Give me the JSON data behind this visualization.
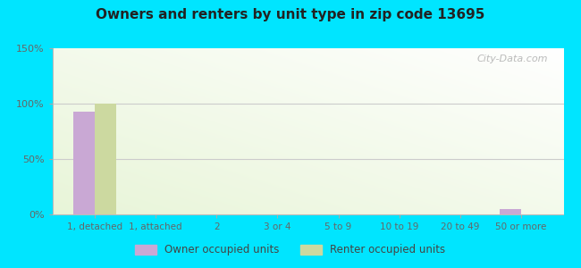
{
  "title": "Owners and renters by unit type in zip code 13695",
  "categories": [
    "1, detached",
    "1, attached",
    "2",
    "3 or 4",
    "5 to 9",
    "10 to 19",
    "20 to 49",
    "50 or more"
  ],
  "owner_values": [
    93,
    0,
    0,
    0,
    0,
    0,
    0,
    5
  ],
  "renter_values": [
    100,
    0,
    0,
    0,
    0,
    0,
    0,
    0
  ],
  "owner_color": "#c9a8d4",
  "renter_color": "#ccd9a0",
  "ylim": [
    0,
    150
  ],
  "yticks": [
    0,
    50,
    100,
    150
  ],
  "ytick_labels": [
    "0%",
    "50%",
    "100%",
    "150%"
  ],
  "bar_width": 0.35,
  "outer_background": "#00e5ff",
  "legend_owner": "Owner occupied units",
  "legend_renter": "Renter occupied units",
  "watermark": "City-Data.com"
}
